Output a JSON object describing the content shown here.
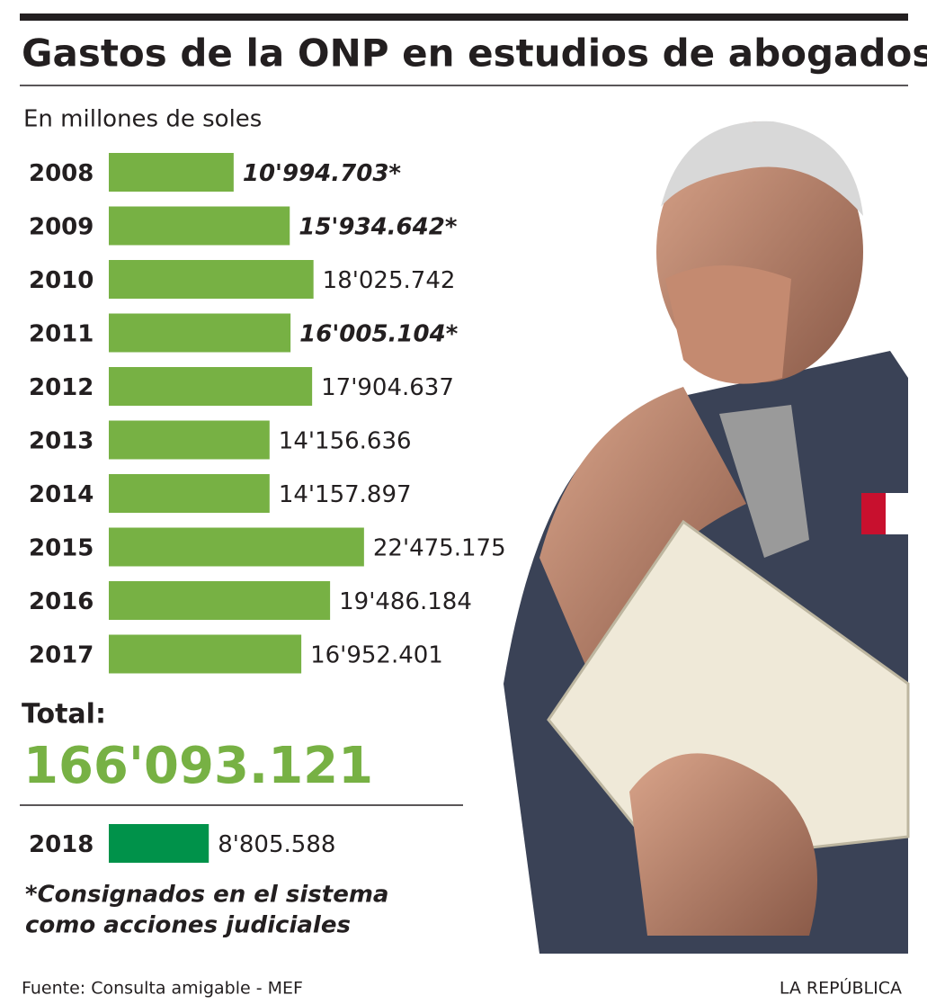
{
  "chart_data": {
    "type": "bar",
    "title": "Gastos de la ONP en estudios de abogados",
    "subtitle": "En millones de soles",
    "categories": [
      "2008",
      "2009",
      "2010",
      "2011",
      "2012",
      "2013",
      "2014",
      "2015",
      "2016",
      "2017"
    ],
    "values": [
      10994703,
      15934642,
      18025742,
      16005104,
      17904637,
      14156636,
      14157897,
      22475175,
      19486184,
      16952401
    ],
    "value_labels": [
      "10'994.703*",
      "15'934.642*",
      "18'025.742",
      "16'005.104*",
      "17'904.637",
      "14'156.636",
      "14'157.897",
      "22'475.175",
      "19'486.184",
      "16'952.401"
    ],
    "highlight": [
      true,
      true,
      false,
      true,
      false,
      false,
      false,
      false,
      false,
      false
    ],
    "color": "#77b144",
    "total_label": "Total:",
    "total_value": 166093121,
    "total_value_label": "166'093.121",
    "extra": {
      "category": "2018",
      "value": 8805588,
      "value_label": "8'805.588",
      "color": "#00924a"
    },
    "note": [
      "*Consignados en el sistema",
      "como acciones judiciales"
    ],
    "source": "Fuente: Consulta amigable - MEF",
    "credit": "LA REPÚBLICA"
  }
}
